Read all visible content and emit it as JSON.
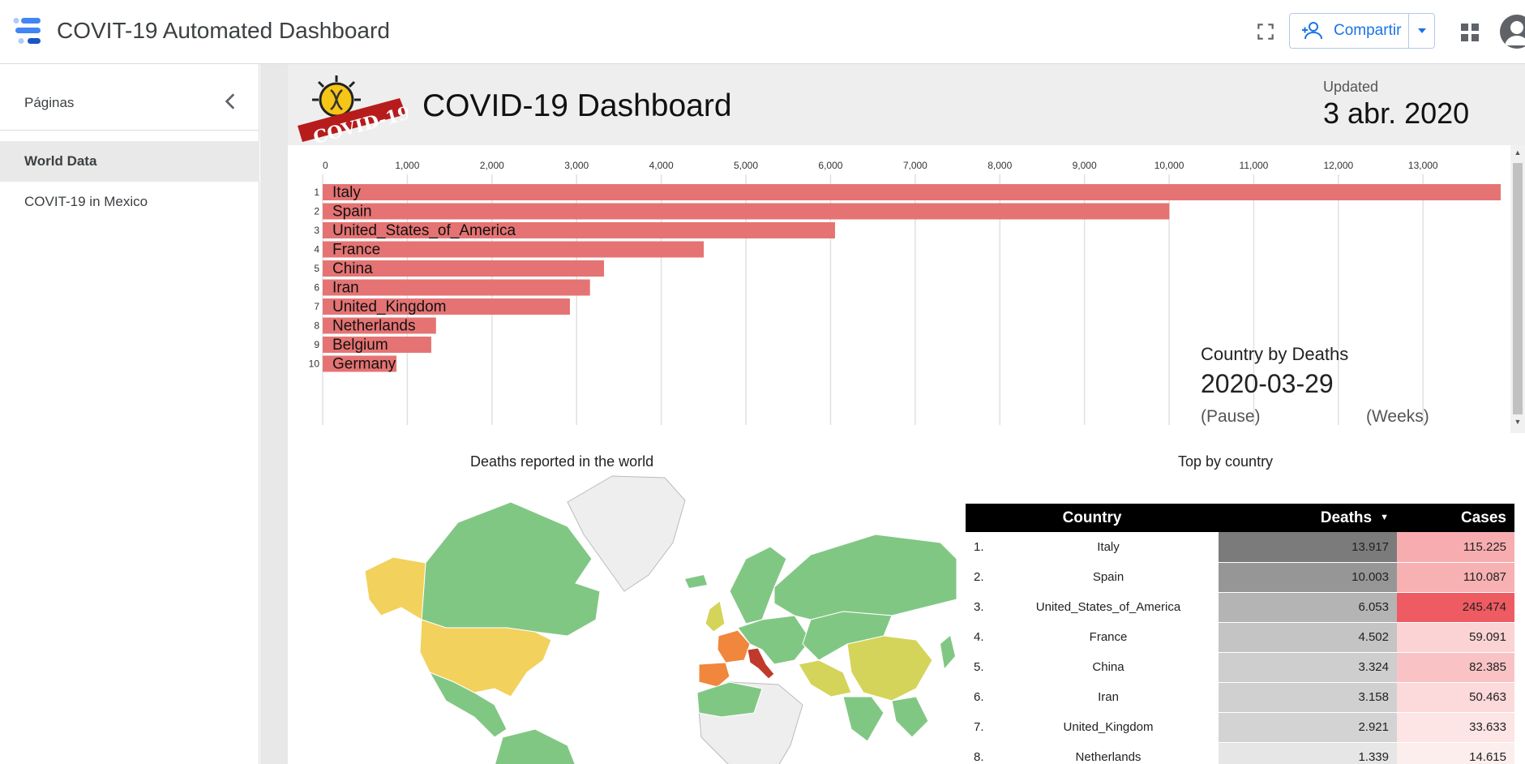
{
  "app": {
    "title": "COVIT-19 Automated Dashboard",
    "share_label": "Compartir",
    "icons": [
      "data-studio-logo-icon",
      "fullscreen-icon",
      "person-add-icon",
      "dropdown-arrow-icon",
      "apps-grid-icon",
      "account-avatar-icon"
    ],
    "accent_color": "#1a73e8"
  },
  "sidebar": {
    "header_label": "Páginas",
    "items": [
      {
        "label": "World Data",
        "active": true
      },
      {
        "label": "COVIT-19 in Mexico",
        "active": false
      }
    ]
  },
  "report": {
    "logo_text": "COVID-19",
    "title": "COVID-19 Dashboard",
    "updated_label": "Updated",
    "updated_date": "3 abr. 2020"
  },
  "bar_race": {
    "caption": "Country by Deaths",
    "date": "2020-03-29",
    "pause_label": "(Pause)",
    "weeks_label": "(Weeks)",
    "bar_color": "#e57373"
  },
  "chart_data": {
    "type": "bar",
    "orientation": "horizontal",
    "title": "",
    "xlabel": "",
    "ylabel": "",
    "xlim": [
      0,
      14000
    ],
    "x_ticks": [
      "0",
      "1,000",
      "2,000",
      "3,000",
      "4,000",
      "5,000",
      "6,000",
      "7,000",
      "8,000",
      "9,000",
      "10,000",
      "11,000",
      "12,000",
      "13,000"
    ],
    "grid": true,
    "ranks": [
      "1",
      "2",
      "3",
      "4",
      "5",
      "6",
      "7",
      "8",
      "9",
      "10"
    ],
    "categories": [
      "Italy",
      "Spain",
      "United_States_of_America",
      "France",
      "China",
      "Iran",
      "United_Kingdom",
      "Netherlands",
      "Belgium",
      "Germany"
    ],
    "values": [
      13917,
      10003,
      6053,
      4502,
      3324,
      3158,
      2921,
      1339,
      1283,
      872
    ]
  },
  "map": {
    "title": "Deaths reported in the world",
    "colors": {
      "low": "#81c784",
      "mid": "#d4d45a",
      "high": "#f2d15c",
      "higher": "#f0873c",
      "highest": "#c0392b",
      "no_data": "#eeeeee"
    }
  },
  "table": {
    "title": "Top by country",
    "headers": {
      "country": "Country",
      "deaths": "Deaths",
      "cases": "Cases"
    },
    "rows": [
      {
        "rank": "1.",
        "country": "Italy",
        "deaths": "13.917",
        "cases": "115.225",
        "deaths_bg": "#7b7b7b",
        "cases_bg": "#f7adb0"
      },
      {
        "rank": "2.",
        "country": "Spain",
        "deaths": "10.003",
        "cases": "110.087",
        "deaths_bg": "#969696",
        "cases_bg": "#f7b1b3"
      },
      {
        "rank": "3.",
        "country": "United_States_of_America",
        "deaths": "6.053",
        "cases": "245.474",
        "deaths_bg": "#b4b4b4",
        "cases_bg": "#ef5b62"
      },
      {
        "rank": "4.",
        "country": "France",
        "deaths": "4.502",
        "cases": "59.091",
        "deaths_bg": "#c4c4c4",
        "cases_bg": "#fbd3d4"
      },
      {
        "rank": "5.",
        "country": "China",
        "deaths": "3.324",
        "cases": "82.385",
        "deaths_bg": "#cecece",
        "cases_bg": "#f9c3c5"
      },
      {
        "rank": "6.",
        "country": "Iran",
        "deaths": "3.158",
        "cases": "50.463",
        "deaths_bg": "#d0d0d0",
        "cases_bg": "#fcd9da"
      },
      {
        "rank": "7.",
        "country": "United_Kingdom",
        "deaths": "2.921",
        "cases": "33.633",
        "deaths_bg": "#d3d3d3",
        "cases_bg": "#fde4e5"
      },
      {
        "rank": "8.",
        "country": "Netherlands",
        "deaths": "1.339",
        "cases": "14.615",
        "deaths_bg": "#e6e6e6",
        "cases_bg": "#fdeeee"
      }
    ]
  }
}
